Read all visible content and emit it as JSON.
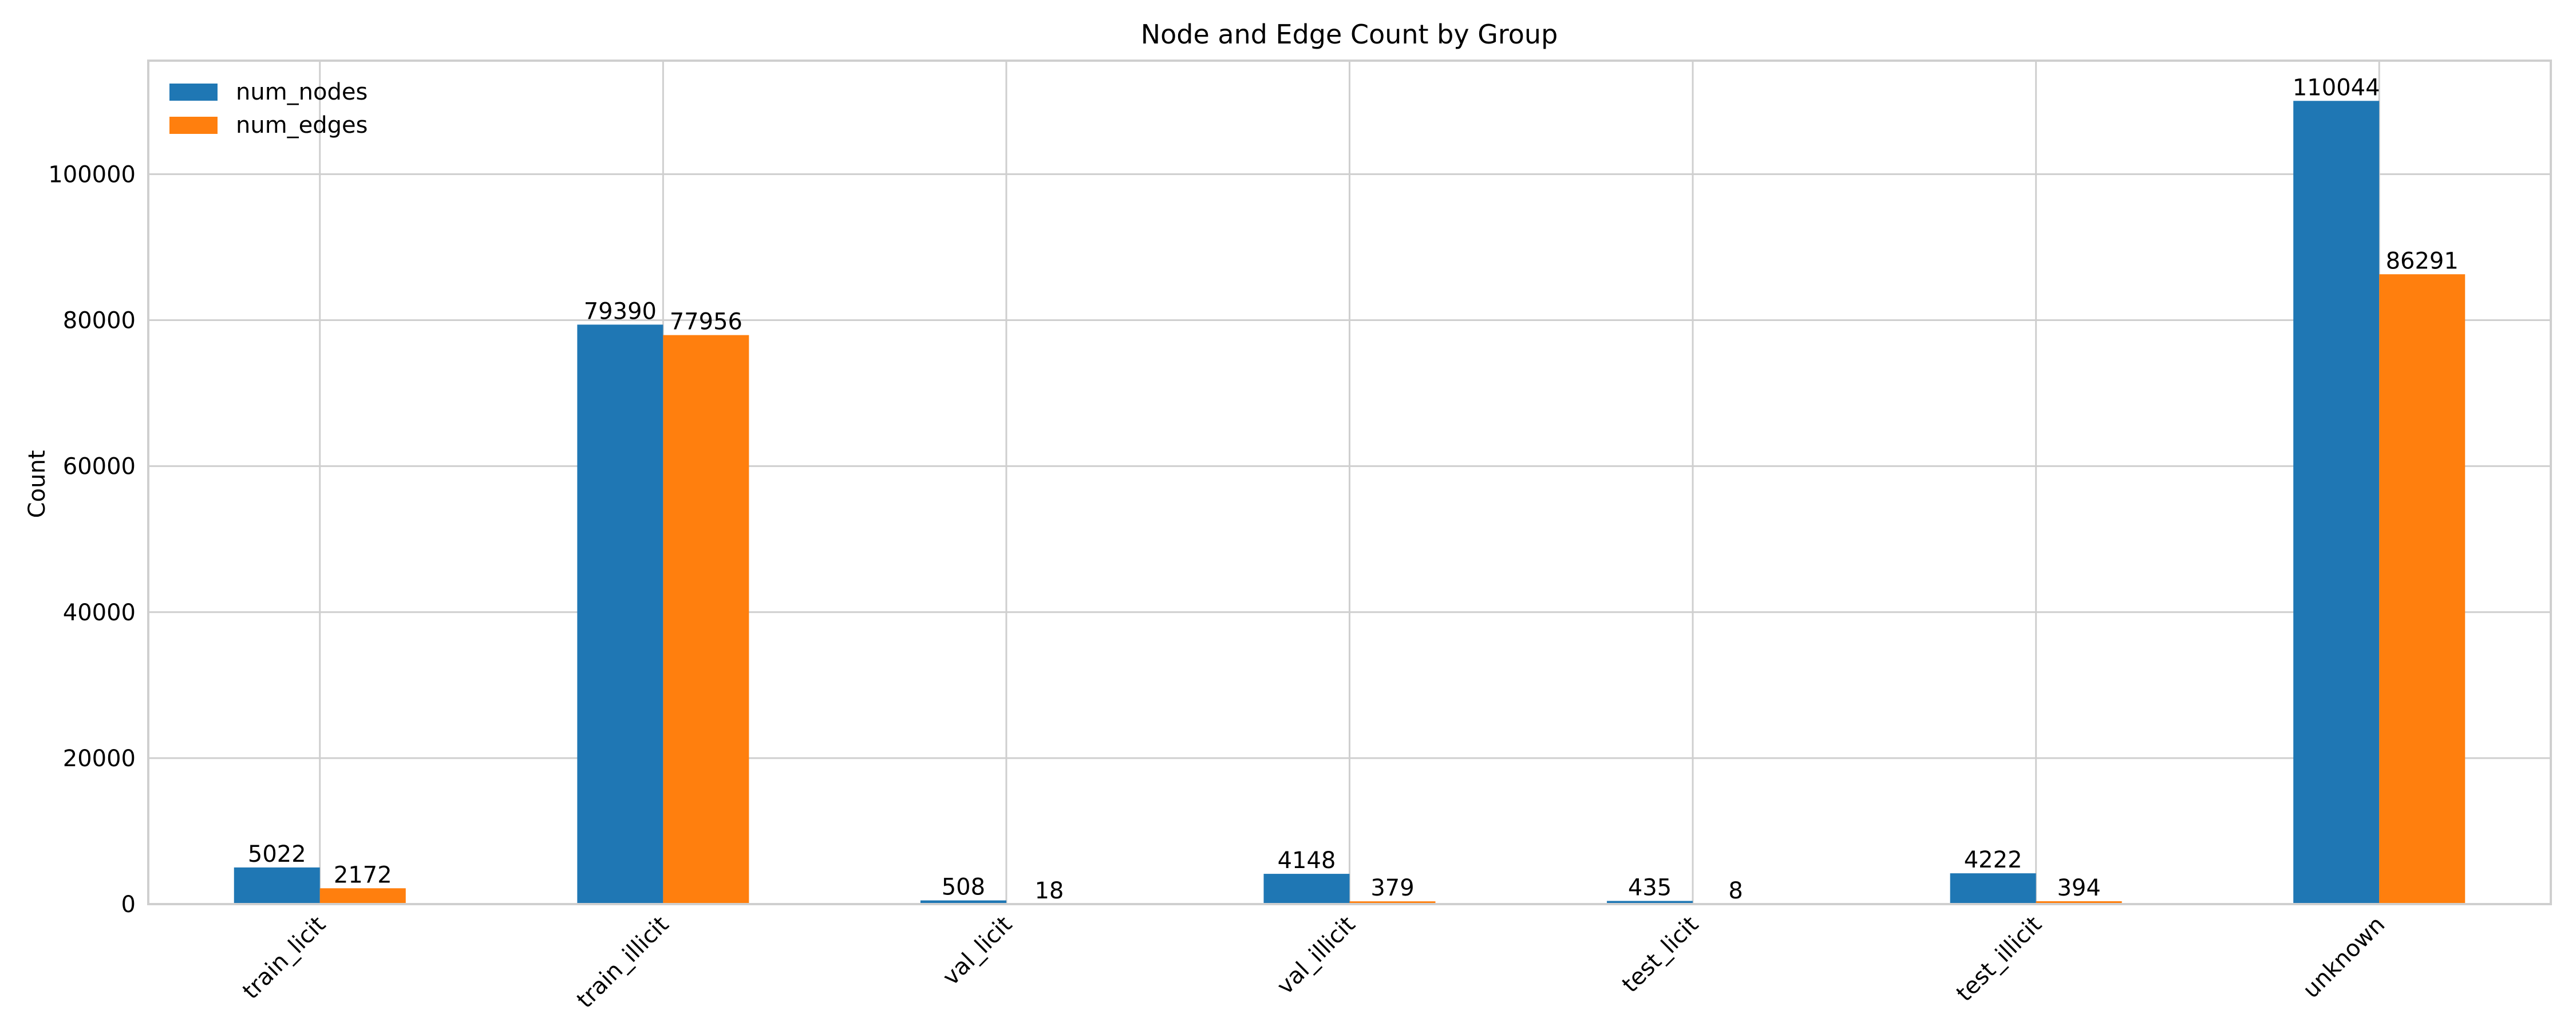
{
  "chart_data": {
    "type": "bar",
    "title": "Node and Edge Count by Group",
    "xlabel": "",
    "ylabel": "Count",
    "categories": [
      "train_licit",
      "train_illicit",
      "val_licit",
      "val_illicit",
      "test_licit",
      "test_illicit",
      "unknown"
    ],
    "series": [
      {
        "name": "num_nodes",
        "color": "#1f77b4",
        "values": [
          5022,
          79390,
          508,
          4148,
          435,
          4222,
          110044
        ]
      },
      {
        "name": "num_edges",
        "color": "#ff7f0e",
        "values": [
          2172,
          77956,
          18,
          379,
          8,
          394,
          86291
        ]
      }
    ],
    "ylim": [
      0,
      115554
    ],
    "yticks": [
      0,
      20000,
      40000,
      60000,
      80000,
      100000
    ],
    "grid": true,
    "legend_position": "top-left",
    "xtick_rotation": 45
  }
}
